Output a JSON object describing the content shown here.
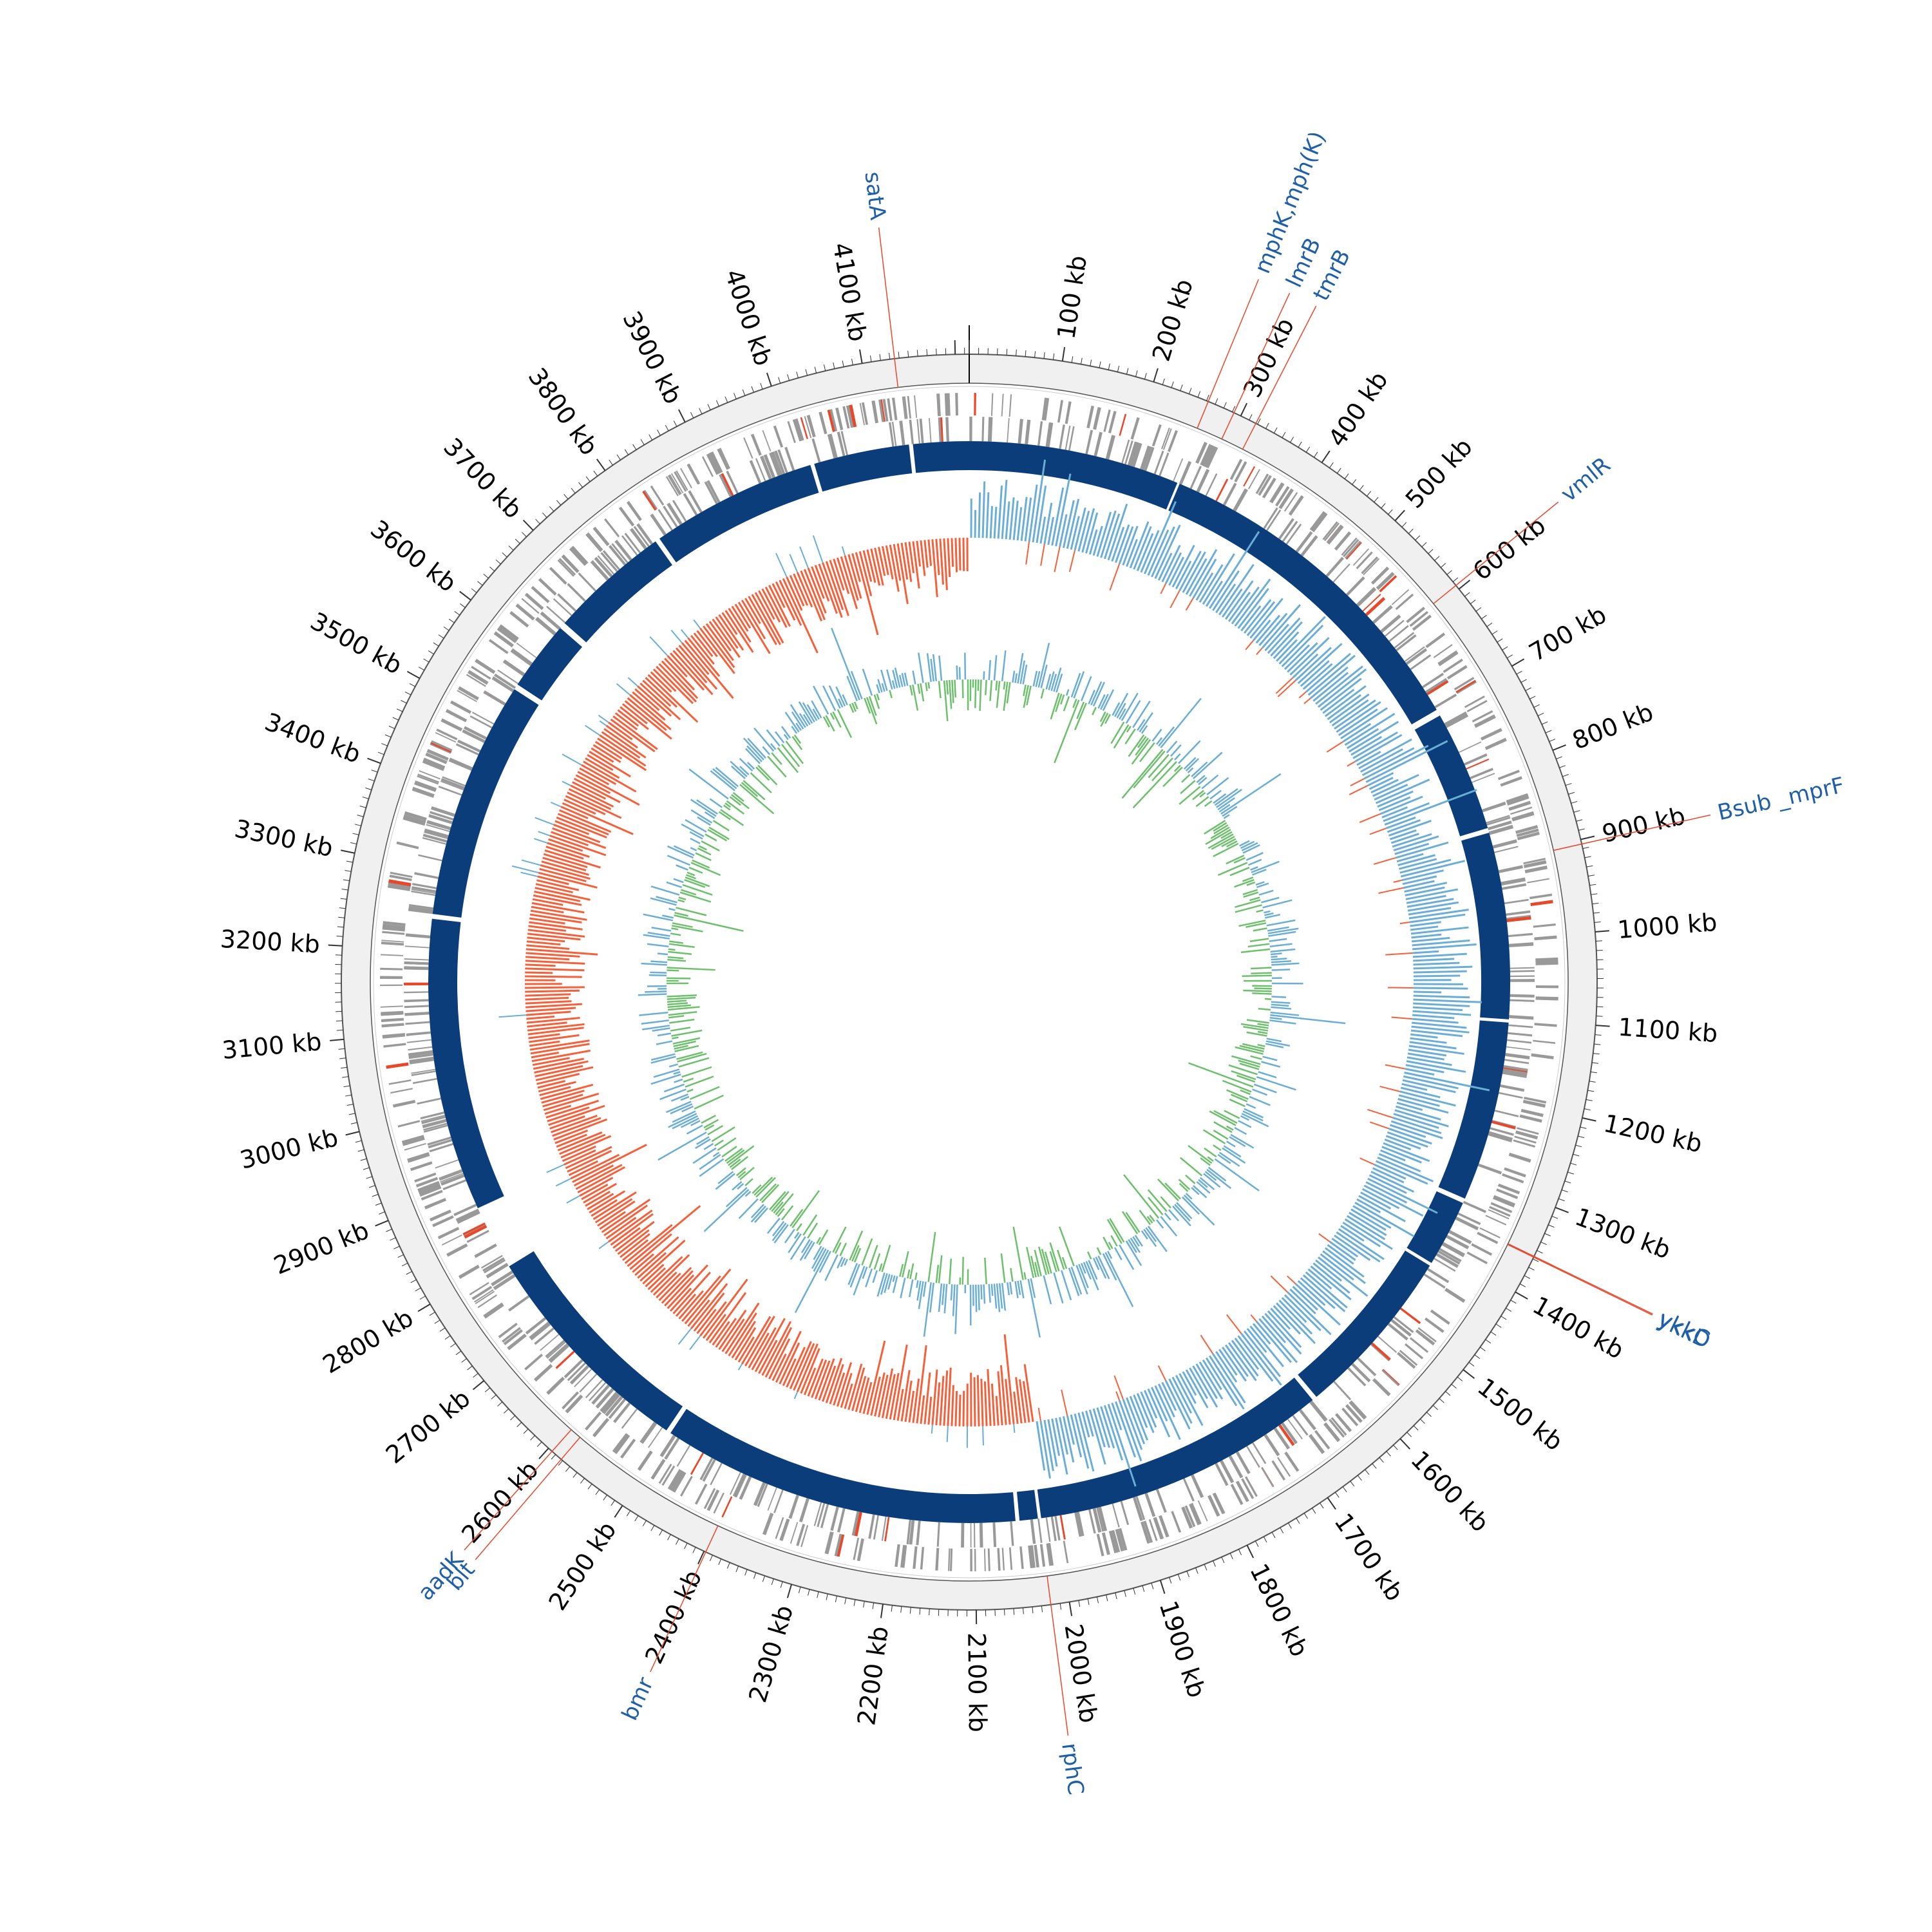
{
  "genome": {
    "tick_labels": [
      "100 kb",
      "200 kb",
      "300 kb",
      "400 kb",
      "500 kb",
      "600 kb",
      "700 kb",
      "800 kb",
      "900 kb",
      "1000 kb",
      "1100 kb",
      "1200 kb",
      "1300 kb",
      "1400 kb",
      "1500 kb",
      "1600 kb",
      "1700 kb",
      "1800 kb",
      "1900 kb",
      "2000 kb",
      "2100 kb",
      "2200 kb",
      "2300 kb",
      "2400 kb",
      "2500 kb",
      "2600 kb",
      "2700 kb",
      "2800 kb",
      "2900 kb",
      "3000 kb",
      "3100 kb",
      "3200 kb",
      "3300 kb",
      "3400 kb",
      "3500 kb",
      "3600 kb",
      "3700 kb",
      "3800 kb",
      "3900 kb",
      "4000 kb",
      "4100 kb"
    ],
    "total_kb": 4215
  },
  "gene_annotations": [
    {
      "name": "satA",
      "kb": 4135
    },
    {
      "name": "mphK,mph(K)",
      "kb": 262
    },
    {
      "name": "lmrB",
      "kb": 292
    },
    {
      "name": "tmrB",
      "kb": 318
    },
    {
      "name": "vmlR",
      "kb": 595
    },
    {
      "name": "Bsub _mprF",
      "kb": 905
    },
    {
      "name": "ykkC",
      "kb": 1357
    },
    {
      "name": "ykkD",
      "kb": 1358
    },
    {
      "name": "rphC",
      "kb": 2020
    },
    {
      "name": "bmr",
      "kb": 2398
    },
    {
      "name": "aadK",
      "kb": 2595
    },
    {
      "name": "blt",
      "kb": 2582
    }
  ],
  "colors": {
    "gene_label": "#1f5fa8",
    "leader_line": "#e8472a",
    "contig_block": "#0a3d7a",
    "feature_ticks": "#999999",
    "gc_skew_positive": "#6aaed6",
    "gc_skew_negative": "#f5603a",
    "gc_content_above": "#6aaed6",
    "gc_content_below": "#6cc06c",
    "outer_band": "#f0f0f0"
  }
}
